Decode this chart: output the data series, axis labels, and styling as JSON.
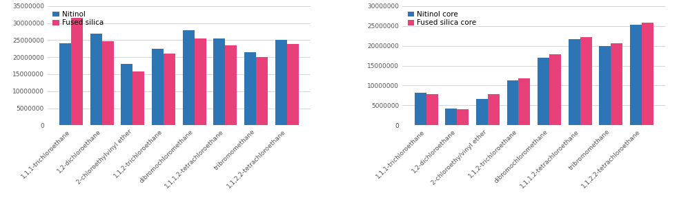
{
  "left": {
    "categories": [
      "1,1,1-trichloroethane",
      "1,2-dichloroethane",
      "2-chloroethylvinyl ether",
      "1,1,2-trichloroethane",
      "dibromochloromethane",
      "1,1,1,2-tetrachloroethane",
      "tribromomethane",
      "1,1,2,2-tetrachloroethane"
    ],
    "nitinol": [
      24000000,
      26800000,
      18000000,
      22500000,
      28000000,
      25500000,
      21500000,
      25000000
    ],
    "fused_silica": [
      31500000,
      24700000,
      15700000,
      21000000,
      25500000,
      23500000,
      20000000,
      23900000
    ],
    "legend1": "Nitinol",
    "legend2": "Fused silica",
    "ylim": [
      0,
      35000000
    ],
    "yticks": [
      0,
      5000000,
      10000000,
      15000000,
      20000000,
      25000000,
      30000000,
      35000000
    ]
  },
  "right": {
    "categories": [
      "1,1,1-trichloroethane",
      "1,2-dichloroethane",
      "2-chloroethy/vinyl ether",
      "1,1,2-trichloroethane",
      "dibromochloromethane",
      "1,1,1,2-tetrachloroethane",
      "tribromomethane",
      "1,1,2,2-tetrachloroethane"
    ],
    "nitinol": [
      8100000,
      4200000,
      6600000,
      11300000,
      17000000,
      21600000,
      20000000,
      25300000
    ],
    "fused_silica": [
      7900000,
      4100000,
      7900000,
      11800000,
      17900000,
      22100000,
      20700000,
      25900000
    ],
    "legend1": "Nitinol core",
    "legend2": "Fused silica core",
    "ylim": [
      0,
      30000000
    ],
    "yticks": [
      0,
      5000000,
      10000000,
      15000000,
      20000000,
      25000000,
      30000000
    ]
  },
  "bar_color_blue": "#2E75B6",
  "bar_color_pink": "#E8417A",
  "bar_width": 0.38,
  "tick_fontsize": 6.5,
  "legend_fontsize": 7.5,
  "background_color": "#ffffff",
  "grid_color": "#d0d0d0"
}
